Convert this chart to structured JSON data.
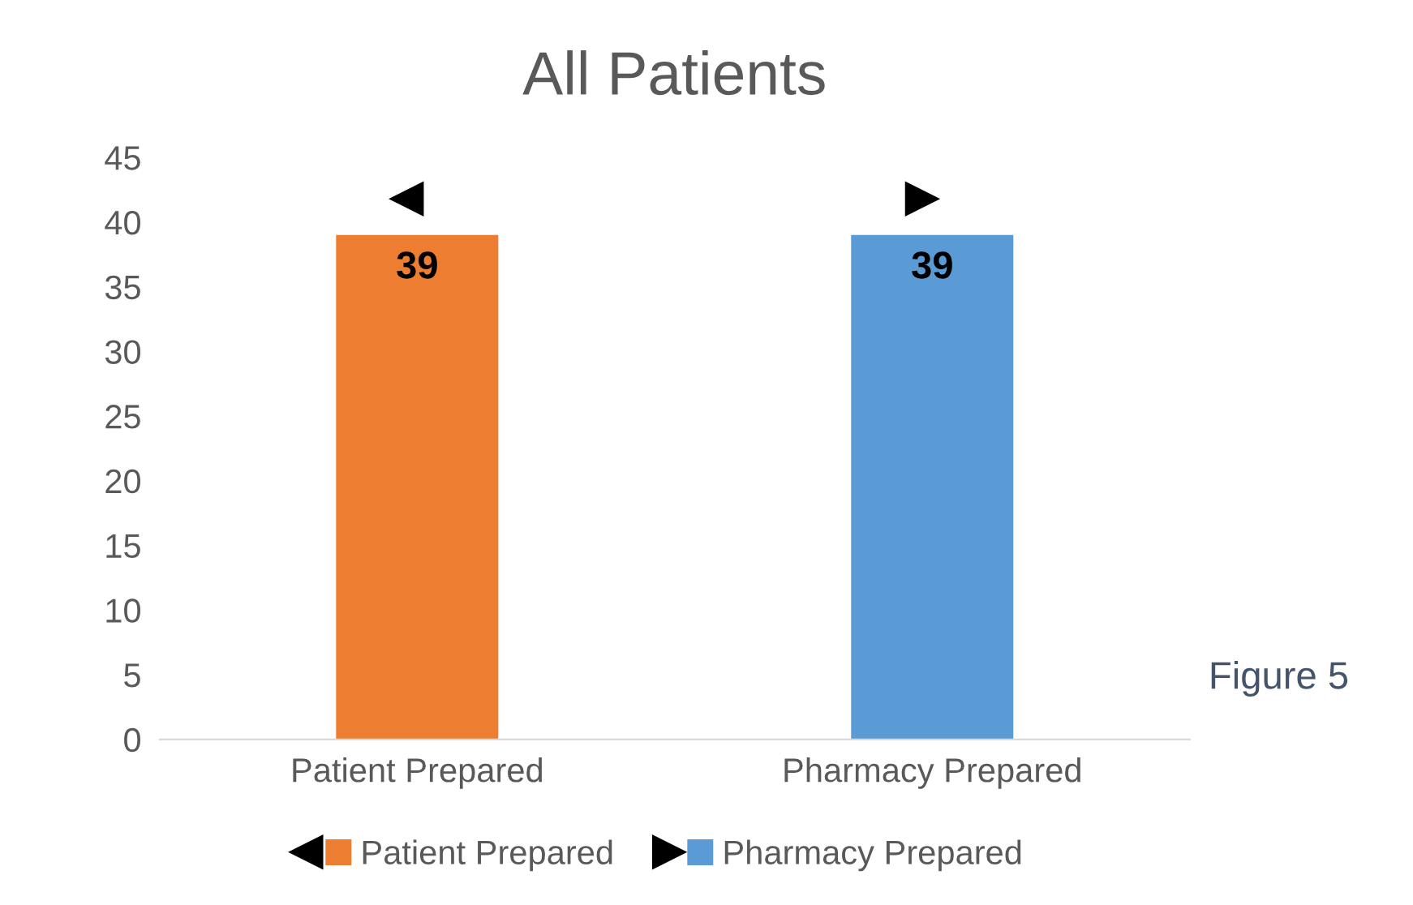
{
  "chart_data": {
    "type": "bar",
    "title": "All Patients",
    "categories": [
      "Patient Prepared",
      "Pharmacy Prepared"
    ],
    "series": [
      {
        "name": "Patient Prepared",
        "color": "#ed7d31",
        "values": [
          39,
          null
        ]
      },
      {
        "name": "Pharmacy Prepared",
        "color": "#5b9bd5",
        "values": [
          null,
          39
        ]
      }
    ],
    "ylim": [
      0,
      45
    ],
    "yticks": [
      0,
      5,
      10,
      15,
      20,
      25,
      30,
      35,
      40,
      45
    ],
    "grid": false,
    "legend": "bottom",
    "data_labels": true,
    "annotations": [
      "Figure 5"
    ]
  }
}
